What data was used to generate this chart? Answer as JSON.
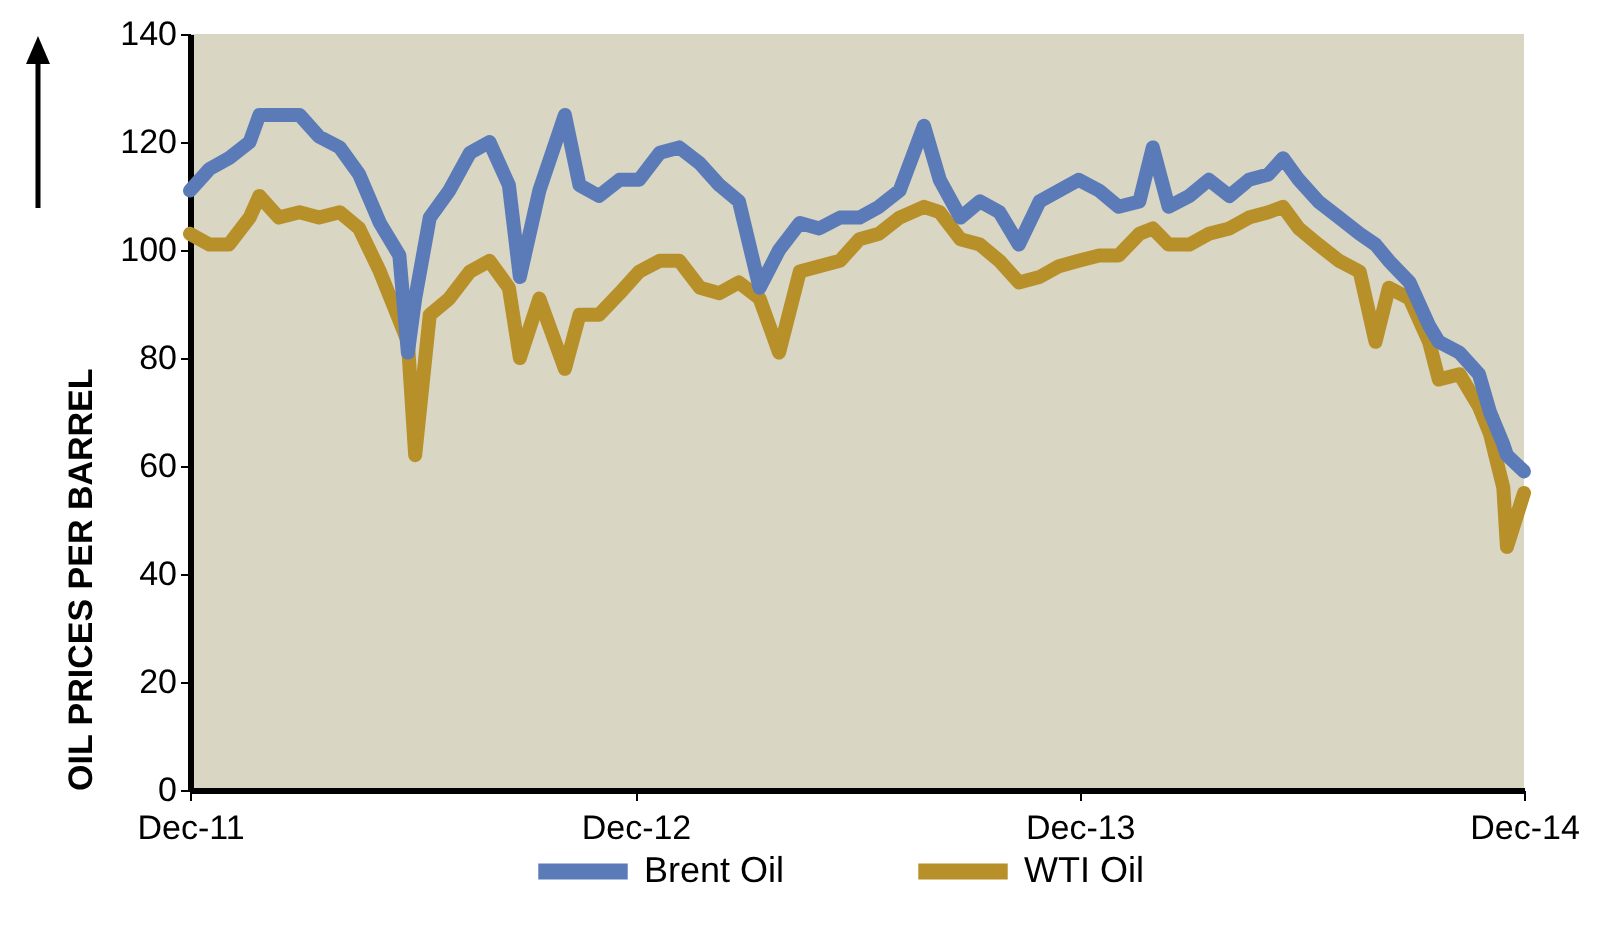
{
  "chart_data": {
    "type": "line",
    "ylabel": "OIL PRICES PER BARREL",
    "legend": "bottom",
    "grid": false,
    "line_style": "solid",
    "marker": "none",
    "x": [
      "2011-12-01",
      "2011-12-17",
      "2012-01-02",
      "2012-01-19",
      "2012-01-27",
      "2012-02-12",
      "2012-02-29",
      "2012-03-16",
      "2012-04-02",
      "2012-04-18",
      "2012-05-05",
      "2012-05-21",
      "2012-05-28",
      "2012-06-03",
      "2012-06-15",
      "2012-07-01",
      "2012-07-18",
      "2012-08-03",
      "2012-08-19",
      "2012-08-28",
      "2012-09-13",
      "2012-10-04",
      "2012-10-16",
      "2012-11-01",
      "2012-11-18",
      "2012-12-04",
      "2012-12-21",
      "2013-01-06",
      "2013-01-23",
      "2013-02-08",
      "2013-02-24",
      "2013-03-13",
      "2013-03-29",
      "2013-04-15",
      "2013-05-01",
      "2013-05-18",
      "2013-06-03",
      "2013-06-19",
      "2013-07-06",
      "2013-07-26",
      "2013-08-08",
      "2013-08-25",
      "2013-09-10",
      "2013-09-26",
      "2013-10-12",
      "2013-10-29",
      "2013-11-14",
      "2013-11-30",
      "2013-12-17",
      "2014-01-02",
      "2014-01-19",
      "2014-01-30",
      "2014-02-12",
      "2014-03-01",
      "2014-03-17",
      "2014-04-03",
      "2014-04-19",
      "2014-05-05",
      "2014-05-17",
      "2014-05-30",
      "2014-06-15",
      "2014-07-02",
      "2014-07-19",
      "2014-08-01",
      "2014-08-12",
      "2014-08-29",
      "2014-09-14",
      "2014-09-22",
      "2014-10-09",
      "2014-10-25",
      "2014-11-03",
      "2014-11-14",
      "2014-11-17",
      "2014-12-01"
    ],
    "series": [
      {
        "name": "Brent Oil",
        "color": "#5b7bb8",
        "values": [
          111,
          115,
          117,
          120,
          125,
          125,
          125,
          121,
          119,
          114,
          105,
          99,
          81,
          91,
          106,
          111,
          118,
          120,
          112,
          95,
          111,
          125,
          112,
          110,
          113,
          113,
          118,
          119,
          116,
          112,
          109,
          93,
          100,
          105,
          104,
          106,
          106,
          108,
          111,
          123,
          113,
          106,
          109,
          107,
          101,
          109,
          111,
          113,
          111,
          108,
          109,
          119,
          108,
          110,
          113,
          110,
          113,
          114,
          117,
          113,
          109,
          106,
          103,
          101,
          98,
          94,
          86,
          83,
          81,
          77,
          70,
          64,
          62,
          59
        ]
      },
      {
        "name": "WTI Oil",
        "color": "#b8902a",
        "values": [
          103,
          101,
          101,
          106,
          110,
          106,
          107,
          106,
          107,
          104,
          96,
          87,
          83,
          62,
          88,
          91,
          96,
          98,
          93,
          80,
          91,
          78,
          88,
          88,
          92,
          96,
          98,
          98,
          93,
          92,
          94,
          91,
          81,
          96,
          97,
          98,
          102,
          103,
          106,
          108,
          107,
          102,
          101,
          98,
          94,
          95,
          97,
          98,
          99,
          99,
          103,
          104,
          101,
          101,
          103,
          104,
          106,
          107,
          108,
          104,
          101,
          98,
          96,
          83,
          93,
          91,
          83,
          76,
          77,
          71,
          66,
          56,
          45,
          55
        ]
      }
    ],
    "xlim": [
      "2011-12-01",
      "2014-12-01"
    ],
    "xticks": [
      {
        "value": "2011-12-01",
        "label": "Dec-11"
      },
      {
        "value": "2012-12-01",
        "label": "Dec-12"
      },
      {
        "value": "2013-12-01",
        "label": "Dec-13"
      },
      {
        "value": "2014-12-01",
        "label": "Dec-14"
      }
    ],
    "ylim": [
      0,
      140
    ],
    "yticks": [
      0,
      20,
      40,
      60,
      80,
      100,
      120,
      140
    ]
  }
}
